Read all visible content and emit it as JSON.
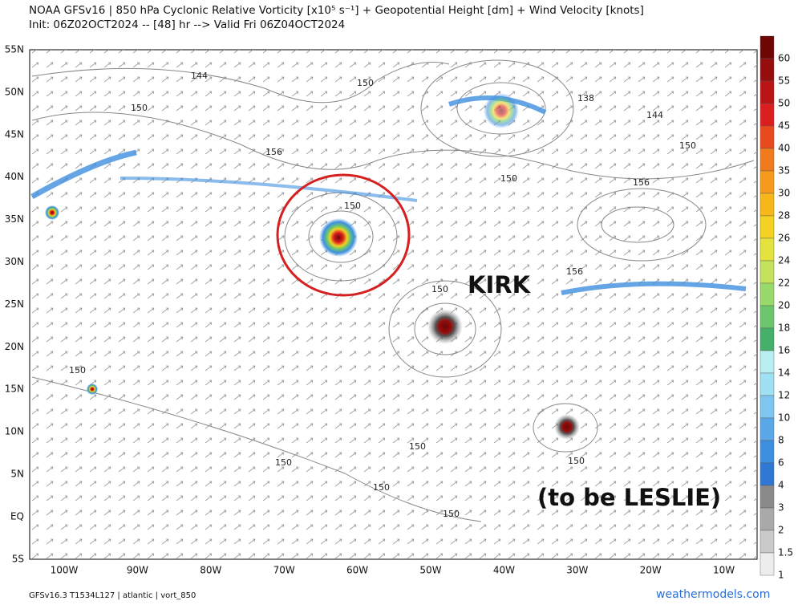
{
  "header": {
    "title": "NOAA GFSv16 |  850 hPa Cyclonic Relative Vorticity [x10⁵ s⁻¹] + Geopotential Height [dm] + Wind Velocity [knots]",
    "subtitle": "Init: 06Z02OCT2024 -- [48] hr --> Valid Fri 06Z04OCT2024"
  },
  "map": {
    "lat_labels": [
      "55N",
      "50N",
      "45N",
      "40N",
      "35N",
      "30N",
      "25N",
      "20N",
      "15N",
      "10N",
      "5N",
      "EQ",
      "5S"
    ],
    "lon_labels": [
      "100W",
      "90W",
      "80W",
      "70W",
      "60W",
      "50W",
      "40W",
      "30W",
      "20W",
      "10W"
    ],
    "contour_labels": [
      "144",
      "150",
      "150",
      "156",
      "138",
      "144",
      "150",
      "150",
      "156",
      "150",
      "150",
      "156",
      "150",
      "150",
      "150",
      "150",
      "150",
      "150"
    ],
    "annotations": [
      "KIRK",
      "(to be LESLIE)"
    ]
  },
  "colorbar": {
    "levels": [
      {
        "label": "60",
        "color": "#6e0606"
      },
      {
        "label": "55",
        "color": "#950d0d"
      },
      {
        "label": "50",
        "color": "#bb1414"
      },
      {
        "label": "45",
        "color": "#db1f1f"
      },
      {
        "label": "40",
        "color": "#e84a1d"
      },
      {
        "label": "35",
        "color": "#f07a1c"
      },
      {
        "label": "30",
        "color": "#f59b1b"
      },
      {
        "label": "28",
        "color": "#f7b71a"
      },
      {
        "label": "26",
        "color": "#f4d123"
      },
      {
        "label": "24",
        "color": "#e4e33e"
      },
      {
        "label": "22",
        "color": "#c3e35c"
      },
      {
        "label": "20",
        "color": "#99d96b"
      },
      {
        "label": "18",
        "color": "#6cc76c"
      },
      {
        "label": "16",
        "color": "#45b06a"
      },
      {
        "label": "14",
        "color": "#b9eef2"
      },
      {
        "label": "12",
        "color": "#9fe1f2"
      },
      {
        "label": "10",
        "color": "#7ec6ef"
      },
      {
        "label": "8",
        "color": "#5aa8e8"
      },
      {
        "label": "6",
        "color": "#3e8fe0"
      },
      {
        "label": "4",
        "color": "#2f78d6"
      },
      {
        "label": "3",
        "color": "#8a8a8a"
      },
      {
        "label": "2",
        "color": "#a9a9a9"
      },
      {
        "label": "1.5",
        "color": "#cacaca"
      },
      {
        "label": "1",
        "color": "#ededed"
      }
    ]
  },
  "footer": {
    "left": "GFSv16.3 T1534L127 | atlantic | vort_850",
    "right": "weathermodels.com"
  }
}
